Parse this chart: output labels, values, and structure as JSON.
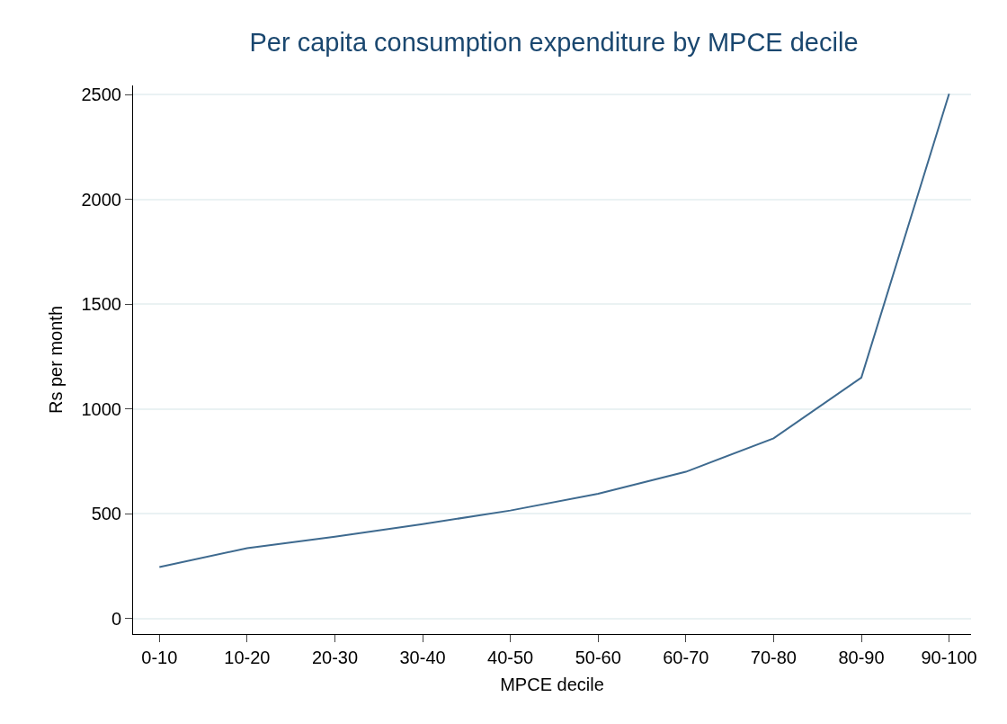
{
  "chart_data": {
    "type": "line",
    "title": "Per capita consumption expenditure by MPCE decile",
    "xlabel": "MPCE decile",
    "ylabel": "Rs per month",
    "categories": [
      "0-10",
      "10-20",
      "20-30",
      "30-40",
      "40-50",
      "50-60",
      "60-70",
      "70-80",
      "80-90",
      "90-100"
    ],
    "series": [
      {
        "color": "#3e6a8f",
        "values": [
          245,
          335,
          390,
          450,
          515,
          595,
          700,
          860,
          1150,
          2505
        ]
      }
    ],
    "ylim": [
      -75,
      2545
    ],
    "yticks": [
      0,
      500,
      1000,
      1500,
      2000,
      2500
    ],
    "grid": "y",
    "marker": "none",
    "line_style": "solid"
  }
}
